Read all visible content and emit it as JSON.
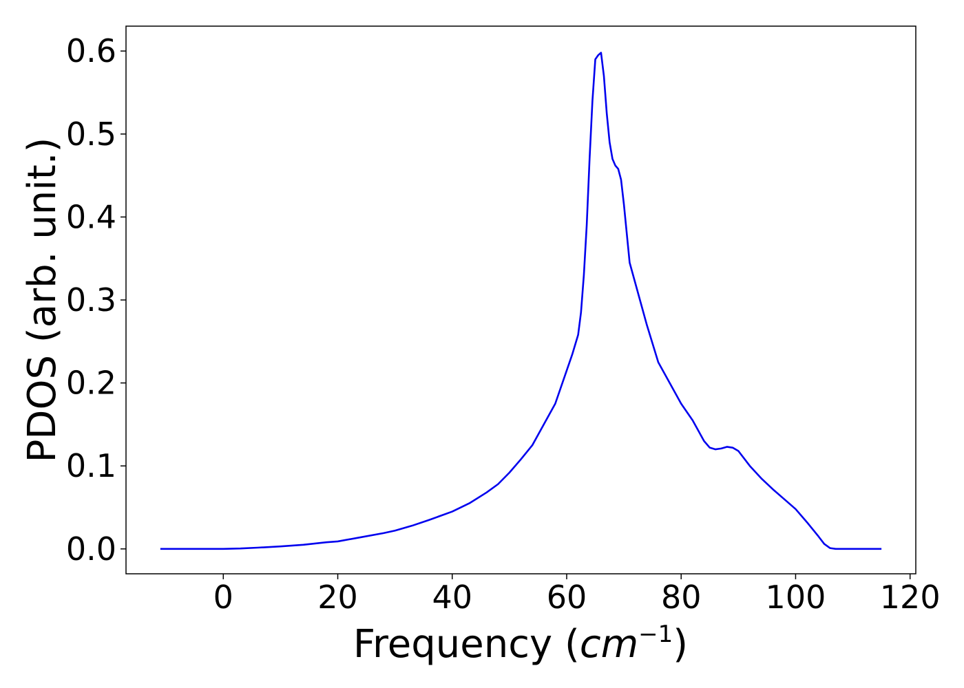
{
  "chart_data": {
    "type": "line",
    "title": "",
    "xlabel_main": "Frequency (",
    "xlabel_var": "cm",
    "xlabel_sup": "−1",
    "xlabel_close": ")",
    "ylabel": "PDOS (arb. unit.)",
    "xlim": [
      -17,
      121
    ],
    "ylim": [
      -0.03,
      0.63
    ],
    "xticks": [
      0,
      20,
      40,
      60,
      80,
      100,
      120
    ],
    "yticks": [
      0.0,
      0.1,
      0.2,
      0.3,
      0.4,
      0.5,
      0.6
    ],
    "xtick_labels": [
      "0",
      "20",
      "40",
      "60",
      "80",
      "100",
      "120"
    ],
    "ytick_labels": [
      "0.0",
      "0.1",
      "0.2",
      "0.3",
      "0.4",
      "0.5",
      "0.6"
    ],
    "grid": false,
    "series": [
      {
        "color": "#0000ee",
        "x": [
          -11,
          -5,
          0,
          3,
          6,
          10,
          14,
          18,
          20,
          24,
          28,
          30,
          33,
          36,
          40,
          43,
          46,
          48,
          50,
          52,
          54,
          56,
          58,
          60,
          61,
          62,
          62.5,
          63,
          63.5,
          64,
          64.5,
          65,
          65.5,
          66,
          66.5,
          67,
          67.5,
          68,
          68.5,
          69,
          69.5,
          70,
          70.5,
          71,
          72,
          73,
          74,
          76,
          78,
          80,
          82,
          84,
          85,
          86,
          87,
          88,
          89,
          90,
          92,
          94,
          96,
          98,
          100,
          102,
          104,
          105,
          106,
          107,
          110,
          115
        ],
        "y": [
          0,
          0,
          0,
          0.0005,
          0.0015,
          0.003,
          0.005,
          0.008,
          0.009,
          0.014,
          0.019,
          0.022,
          0.028,
          0.035,
          0.045,
          0.055,
          0.068,
          0.078,
          0.092,
          0.108,
          0.125,
          0.15,
          0.175,
          0.215,
          0.235,
          0.258,
          0.285,
          0.33,
          0.39,
          0.47,
          0.54,
          0.59,
          0.595,
          0.598,
          0.57,
          0.525,
          0.49,
          0.47,
          0.462,
          0.458,
          0.445,
          0.415,
          0.38,
          0.345,
          0.32,
          0.295,
          0.27,
          0.225,
          0.2,
          0.175,
          0.155,
          0.13,
          0.122,
          0.12,
          0.121,
          0.123,
          0.122,
          0.118,
          0.1,
          0.085,
          0.072,
          0.06,
          0.048,
          0.032,
          0.015,
          0.006,
          0.001,
          0,
          0,
          0
        ]
      }
    ]
  }
}
